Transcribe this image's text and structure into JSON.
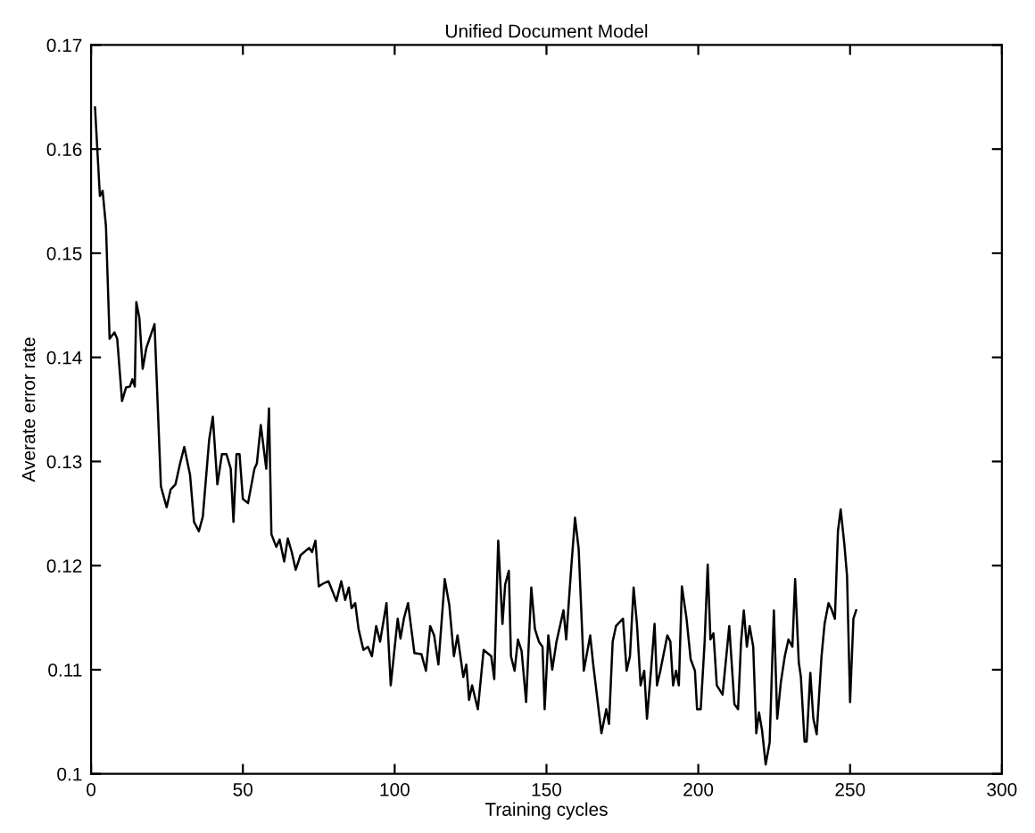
{
  "chart_data": {
    "type": "line",
    "title": "Unified Document Model",
    "xlabel": "Training cycles",
    "ylabel": "Averate error rate",
    "xlim": [
      0,
      300
    ],
    "ylim": [
      0.1,
      0.17
    ],
    "xticks": [
      0,
      50,
      100,
      150,
      200,
      250,
      300
    ],
    "yticks": [
      0.1,
      0.11,
      0.12,
      0.13,
      0.14,
      0.15,
      0.16,
      0.17
    ],
    "grid": false,
    "legend": false,
    "marker": "none",
    "line_style": "solid",
    "series": [
      {
        "color": "#000000",
        "x": [
          1.3,
          2.9,
          3.8,
          4.9,
          6.1,
          7.7,
          8.6,
          10.2,
          11.5,
          12.8,
          13.6,
          14.4,
          14.9,
          15.9,
          17,
          18.2,
          20.9,
          23,
          24.9,
          26.2,
          27.8,
          29.3,
          30.7,
          32.6,
          33.9,
          35.5,
          36.8,
          38.9,
          40.1,
          41.6,
          43.1,
          44.6,
          46,
          46.9,
          47.9,
          48.9,
          50,
          51.7,
          53.8,
          54.6,
          55.9,
          57.7,
          58.6,
          59.4,
          61,
          62.1,
          63.6,
          64.8,
          66.1,
          67.4,
          69,
          71.8,
          72.8,
          73.9,
          75,
          76.6,
          78.2,
          80.8,
          82.4,
          83.7,
          84.9,
          85.8,
          87,
          88.1,
          89.7,
          91.2,
          92.5,
          93.9,
          95.2,
          97.3,
          98.7,
          100.2,
          101,
          101.9,
          103.1,
          104.4,
          106.5,
          108.8,
          110.3,
          111.7,
          113,
          114.4,
          116.5,
          118,
          119.5,
          120.7,
          122.6,
          123.6,
          124.5,
          125.5,
          127.4,
          129.3,
          131.8,
          132.8,
          134.1,
          135.5,
          136.4,
          137.6,
          138.3,
          139.5,
          140.6,
          141.8,
          143.3,
          145,
          146.2,
          147.5,
          148.7,
          149.4,
          150.6,
          151.9,
          153.3,
          155.6,
          156.5,
          158.1,
          159.4,
          160.6,
          162.3,
          164.4,
          165.4,
          168.1,
          169.7,
          170.6,
          171.8,
          172.9,
          175.2,
          176.4,
          177.5,
          178.7,
          179.8,
          181,
          182.2,
          183.1,
          184.5,
          185.6,
          186.4,
          187.5,
          189.8,
          190.8,
          191.7,
          192.7,
          193.6,
          194.6,
          196.1,
          197.5,
          198.9,
          199.6,
          200.8,
          202.1,
          203.1,
          204,
          205,
          206.1,
          208,
          210.2,
          211.9,
          213.1,
          214.1,
          215,
          216,
          216.9,
          218.1,
          219.1,
          220,
          221,
          222.2,
          223.5,
          224.9,
          226,
          227.2,
          228.5,
          229.7,
          231,
          231.9,
          233.1,
          233.8,
          235,
          235.7,
          236.9,
          237.9,
          239,
          240.6,
          241.6,
          242.9,
          243.9,
          245,
          246,
          246.9,
          248.1,
          249,
          250,
          251.1,
          252
        ],
        "values": [
          0.164,
          0.1555,
          0.156,
          0.1526,
          0.1418,
          0.1424,
          0.1418,
          0.1358,
          0.1371,
          0.1372,
          0.1379,
          0.1372,
          0.1453,
          0.1438,
          0.1389,
          0.1409,
          0.1432,
          0.1276,
          0.1256,
          0.1273,
          0.1278,
          0.1298,
          0.1314,
          0.1287,
          0.1242,
          0.1233,
          0.1247,
          0.1321,
          0.1343,
          0.1278,
          0.1307,
          0.1307,
          0.1293,
          0.1242,
          0.1307,
          0.1307,
          0.1264,
          0.126,
          0.1293,
          0.1298,
          0.1335,
          0.1293,
          0.1351,
          0.123,
          0.1218,
          0.1225,
          0.1204,
          0.1226,
          0.1213,
          0.1196,
          0.121,
          0.1217,
          0.1213,
          0.1224,
          0.118,
          0.1183,
          0.1185,
          0.1166,
          0.1185,
          0.1167,
          0.1179,
          0.1159,
          0.1164,
          0.1139,
          0.1119,
          0.1122,
          0.1113,
          0.1142,
          0.1127,
          0.1164,
          0.1085,
          0.1127,
          0.1149,
          0.113,
          0.115,
          0.1164,
          0.1116,
          0.1115,
          0.1099,
          0.1142,
          0.1133,
          0.1105,
          0.1187,
          0.1162,
          0.1113,
          0.1133,
          0.1093,
          0.1105,
          0.1071,
          0.1085,
          0.1062,
          0.1119,
          0.1113,
          0.1091,
          0.1224,
          0.1144,
          0.1182,
          0.1195,
          0.1113,
          0.1099,
          0.1129,
          0.1118,
          0.1069,
          0.1179,
          0.1139,
          0.1127,
          0.1122,
          0.1062,
          0.1133,
          0.11,
          0.1127,
          0.1157,
          0.1129,
          0.1196,
          0.1246,
          0.1216,
          0.1099,
          0.1133,
          0.1105,
          0.1039,
          0.1062,
          0.1048,
          0.1127,
          0.1142,
          0.1149,
          0.1099,
          0.1113,
          0.1179,
          0.1144,
          0.1085,
          0.1099,
          0.1053,
          0.1102,
          0.1144,
          0.1085,
          0.1099,
          0.1133,
          0.1127,
          0.1085,
          0.1099,
          0.1085,
          0.118,
          0.115,
          0.111,
          0.1099,
          0.1062,
          0.1062,
          0.1127,
          0.1201,
          0.1129,
          0.1135,
          0.1085,
          0.1076,
          0.1142,
          0.1067,
          0.1062,
          0.1127,
          0.1157,
          0.1122,
          0.1142,
          0.1122,
          0.1039,
          0.1059,
          0.1042,
          0.1009,
          0.103,
          0.1157,
          0.1053,
          0.1088,
          0.1113,
          0.1129,
          0.1122,
          0.1187,
          0.1107,
          0.1093,
          0.1031,
          0.1031,
          0.1097,
          0.1053,
          0.1038,
          0.1113,
          0.1144,
          0.1164,
          0.1158,
          0.1149,
          0.1233,
          0.1254,
          0.1221,
          0.119,
          0.1069,
          0.1149,
          0.1157
        ]
      }
    ]
  }
}
